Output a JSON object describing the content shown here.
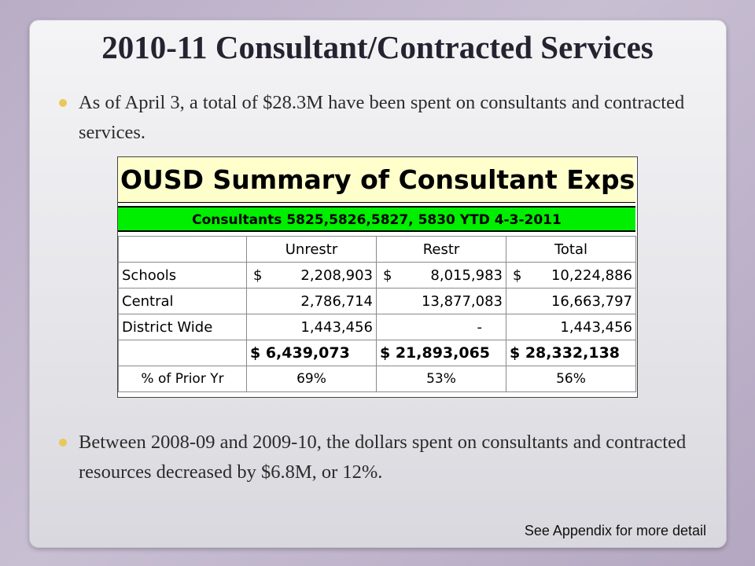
{
  "slide": {
    "title": "2010-11 Consultant/Contracted Services",
    "bullets": [
      "As of April 3, a total of $28.3M have been spent on consultants and contracted services.",
      "Between 2008-09 and 2009-10, the dollars spent on consultants and contracted resources decreased by $6.8M, or 12%."
    ],
    "footer": "See Appendix for more detail",
    "colors": {
      "bullet_dot": "#e8c85a",
      "title_fill": "#ffffcc",
      "subtitle_fill": "#00ee00"
    }
  },
  "sheet": {
    "title": "OUSD Summary of Consultant Exps",
    "subtitle": "Consultants 5825,5826,5827, 5830   YTD 4-3-2011",
    "headers": [
      "",
      "Unrestr",
      "Restr",
      "Total"
    ],
    "rows": [
      {
        "label": "Schools",
        "unrestr_cur": "$",
        "unrestr": "2,208,903",
        "restr_cur": "$",
        "restr": "8,015,983",
        "total_cur": "$",
        "total": "10,224,886"
      },
      {
        "label": "Central",
        "unrestr_cur": "",
        "unrestr": "2,786,714",
        "restr_cur": "",
        "restr": "13,877,083",
        "total_cur": "",
        "total": "16,663,797"
      },
      {
        "label": "District Wide",
        "unrestr_cur": "",
        "unrestr": "1,443,456",
        "restr_cur": "",
        "restr": "-",
        "total_cur": "",
        "total": "1,443,456"
      }
    ],
    "totals": [
      "$   6,439,073",
      "$ 21,893,065",
      "$ 28,332,138"
    ],
    "pct": {
      "label": "% of Prior Yr",
      "values": [
        "69%",
        "53%",
        "56%"
      ]
    }
  }
}
